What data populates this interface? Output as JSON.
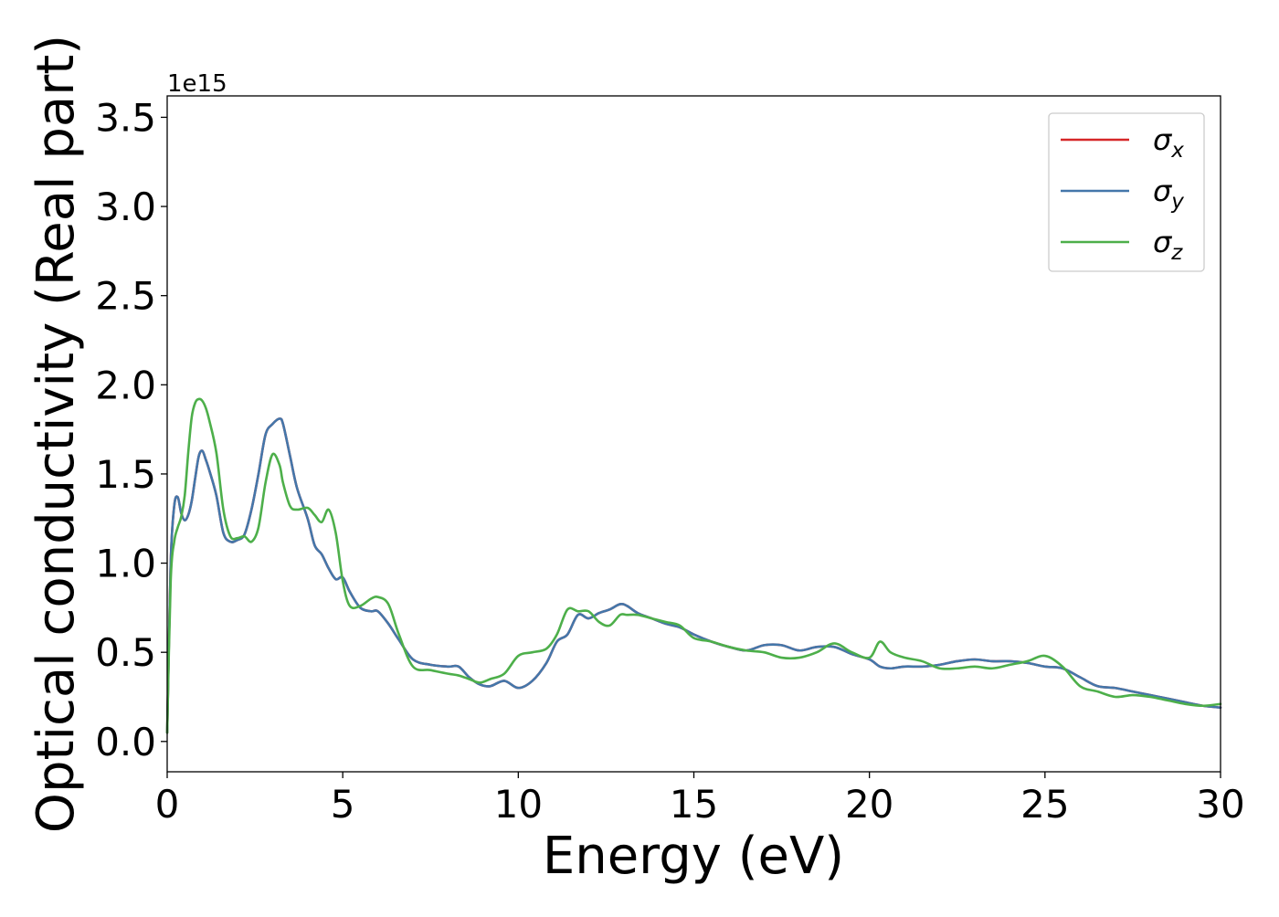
{
  "chart_data": {
    "type": "line",
    "xlabel": "Energy (eV)",
    "ylabel": "Optical conductivity (Real part)",
    "y_offset_label": "1e15",
    "xlim": [
      0,
      30
    ],
    "ylim": [
      -0.17,
      3.62
    ],
    "x_ticks": [
      0,
      5,
      10,
      15,
      20,
      25,
      30
    ],
    "x_tick_labels": [
      "0",
      "5",
      "10",
      "15",
      "20",
      "25",
      "30"
    ],
    "y_ticks": [
      0.0,
      0.5,
      1.0,
      1.5,
      2.0,
      2.5,
      3.0,
      3.5
    ],
    "y_tick_labels": [
      "0.0",
      "0.5",
      "1.0",
      "1.5",
      "2.0",
      "2.5",
      "3.0",
      "3.5"
    ],
    "grid": false,
    "legend_position": "top-right",
    "series": [
      {
        "name": "σx",
        "symbol": "σ",
        "subscript": "x",
        "color": "#d62728",
        "x": [
          0,
          0.1,
          0.2,
          0.3,
          0.4,
          0.5,
          0.6,
          0.7,
          0.8,
          0.9,
          1.0,
          1.1,
          1.2,
          1.4,
          1.6,
          1.8,
          2.0,
          2.2,
          2.4,
          2.6,
          2.8,
          3.0,
          3.2,
          3.3,
          3.5,
          3.7,
          4.0,
          4.2,
          4.4,
          4.6,
          4.8,
          5.0,
          5.2,
          5.5,
          5.8,
          6.0,
          6.3,
          6.6,
          7.0,
          7.5,
          8.0,
          8.3,
          8.6,
          8.9,
          9.2,
          9.6,
          10.0,
          10.4,
          10.8,
          11.1,
          11.4,
          11.7,
          12.0,
          12.3,
          12.6,
          12.9,
          13.1,
          13.4,
          13.8,
          14.2,
          14.6,
          15.0,
          15.5,
          16.0,
          16.5,
          17.0,
          17.5,
          18.0,
          18.5,
          19.0,
          19.5,
          20.0,
          20.3,
          20.6,
          21.0,
          21.5,
          22.0,
          22.5,
          23.0,
          23.5,
          24.0,
          24.5,
          25.0,
          25.5,
          26.0,
          26.5,
          27.0,
          27.5,
          28.0,
          28.5,
          29.0,
          29.5,
          30.0
        ],
        "values": [
          0.05,
          1.0,
          1.32,
          1.37,
          1.28,
          1.24,
          1.27,
          1.35,
          1.48,
          1.6,
          1.63,
          1.58,
          1.52,
          1.38,
          1.17,
          1.12,
          1.13,
          1.16,
          1.3,
          1.5,
          1.72,
          1.78,
          1.81,
          1.78,
          1.6,
          1.42,
          1.25,
          1.1,
          1.05,
          0.97,
          0.91,
          0.92,
          0.84,
          0.75,
          0.73,
          0.73,
          0.66,
          0.57,
          0.46,
          0.43,
          0.42,
          0.42,
          0.36,
          0.32,
          0.31,
          0.34,
          0.3,
          0.34,
          0.44,
          0.56,
          0.6,
          0.71,
          0.69,
          0.72,
          0.74,
          0.77,
          0.76,
          0.72,
          0.69,
          0.66,
          0.64,
          0.6,
          0.56,
          0.53,
          0.51,
          0.54,
          0.54,
          0.51,
          0.53,
          0.53,
          0.49,
          0.46,
          0.42,
          0.41,
          0.42,
          0.42,
          0.43,
          0.45,
          0.46,
          0.45,
          0.45,
          0.44,
          0.42,
          0.41,
          0.36,
          0.31,
          0.3,
          0.28,
          0.26,
          0.24,
          0.22,
          0.2,
          0.19
        ]
      },
      {
        "name": "σy",
        "symbol": "σ",
        "subscript": "y",
        "color": "#4477aa",
        "x": [
          0,
          0.1,
          0.2,
          0.3,
          0.4,
          0.5,
          0.6,
          0.7,
          0.8,
          0.9,
          1.0,
          1.1,
          1.2,
          1.4,
          1.6,
          1.8,
          2.0,
          2.2,
          2.4,
          2.6,
          2.8,
          3.0,
          3.2,
          3.3,
          3.5,
          3.7,
          4.0,
          4.2,
          4.4,
          4.6,
          4.8,
          5.0,
          5.2,
          5.5,
          5.8,
          6.0,
          6.3,
          6.6,
          7.0,
          7.5,
          8.0,
          8.3,
          8.6,
          8.9,
          9.2,
          9.6,
          10.0,
          10.4,
          10.8,
          11.1,
          11.4,
          11.7,
          12.0,
          12.3,
          12.6,
          12.9,
          13.1,
          13.4,
          13.8,
          14.2,
          14.6,
          15.0,
          15.5,
          16.0,
          16.5,
          17.0,
          17.5,
          18.0,
          18.5,
          19.0,
          19.5,
          20.0,
          20.3,
          20.6,
          21.0,
          21.5,
          22.0,
          22.5,
          23.0,
          23.5,
          24.0,
          24.5,
          25.0,
          25.5,
          26.0,
          26.5,
          27.0,
          27.5,
          28.0,
          28.5,
          29.0,
          29.5,
          30.0
        ],
        "values": [
          0.05,
          1.0,
          1.32,
          1.37,
          1.28,
          1.24,
          1.27,
          1.35,
          1.48,
          1.6,
          1.63,
          1.58,
          1.52,
          1.38,
          1.17,
          1.12,
          1.13,
          1.16,
          1.3,
          1.5,
          1.72,
          1.78,
          1.81,
          1.78,
          1.6,
          1.42,
          1.25,
          1.1,
          1.05,
          0.97,
          0.91,
          0.92,
          0.84,
          0.75,
          0.73,
          0.73,
          0.66,
          0.57,
          0.46,
          0.43,
          0.42,
          0.42,
          0.36,
          0.32,
          0.31,
          0.34,
          0.3,
          0.34,
          0.44,
          0.56,
          0.6,
          0.71,
          0.69,
          0.72,
          0.74,
          0.77,
          0.76,
          0.72,
          0.69,
          0.66,
          0.64,
          0.6,
          0.56,
          0.53,
          0.51,
          0.54,
          0.54,
          0.51,
          0.53,
          0.53,
          0.49,
          0.46,
          0.42,
          0.41,
          0.42,
          0.42,
          0.43,
          0.45,
          0.46,
          0.45,
          0.45,
          0.44,
          0.42,
          0.41,
          0.36,
          0.31,
          0.3,
          0.28,
          0.26,
          0.24,
          0.22,
          0.2,
          0.19
        ]
      },
      {
        "name": "σz",
        "symbol": "σ",
        "subscript": "z",
        "color": "#4daf4a",
        "x": [
          0,
          0.1,
          0.2,
          0.3,
          0.4,
          0.5,
          0.6,
          0.7,
          0.8,
          0.9,
          1.0,
          1.1,
          1.2,
          1.4,
          1.6,
          1.8,
          2.0,
          2.2,
          2.4,
          2.6,
          2.8,
          3.0,
          3.2,
          3.3,
          3.5,
          3.7,
          4.0,
          4.2,
          4.4,
          4.6,
          4.8,
          5.0,
          5.2,
          5.5,
          5.8,
          6.0,
          6.3,
          6.6,
          7.0,
          7.5,
          8.0,
          8.3,
          8.6,
          8.9,
          9.2,
          9.6,
          10.0,
          10.4,
          10.8,
          11.1,
          11.4,
          11.7,
          12.0,
          12.3,
          12.6,
          12.9,
          13.1,
          13.4,
          13.8,
          14.2,
          14.6,
          15.0,
          15.5,
          16.0,
          16.5,
          17.0,
          17.5,
          18.0,
          18.5,
          19.0,
          19.5,
          20.0,
          20.3,
          20.6,
          21.0,
          21.5,
          22.0,
          22.5,
          23.0,
          23.5,
          24.0,
          24.5,
          25.0,
          25.5,
          26.0,
          26.5,
          27.0,
          27.5,
          28.0,
          28.5,
          29.0,
          29.5,
          30.0
        ],
        "values": [
          0.05,
          0.9,
          1.12,
          1.2,
          1.26,
          1.38,
          1.62,
          1.82,
          1.9,
          1.92,
          1.91,
          1.87,
          1.8,
          1.62,
          1.3,
          1.15,
          1.14,
          1.15,
          1.12,
          1.2,
          1.45,
          1.61,
          1.55,
          1.45,
          1.32,
          1.3,
          1.31,
          1.27,
          1.23,
          1.3,
          1.17,
          0.9,
          0.76,
          0.76,
          0.8,
          0.81,
          0.77,
          0.6,
          0.42,
          0.4,
          0.38,
          0.37,
          0.35,
          0.33,
          0.35,
          0.38,
          0.48,
          0.5,
          0.52,
          0.6,
          0.74,
          0.73,
          0.73,
          0.67,
          0.65,
          0.71,
          0.71,
          0.71,
          0.69,
          0.67,
          0.65,
          0.58,
          0.56,
          0.53,
          0.51,
          0.5,
          0.47,
          0.47,
          0.5,
          0.55,
          0.5,
          0.47,
          0.56,
          0.5,
          0.47,
          0.45,
          0.41,
          0.41,
          0.42,
          0.41,
          0.43,
          0.45,
          0.48,
          0.42,
          0.31,
          0.28,
          0.25,
          0.26,
          0.25,
          0.23,
          0.21,
          0.2,
          0.21
        ]
      }
    ]
  }
}
